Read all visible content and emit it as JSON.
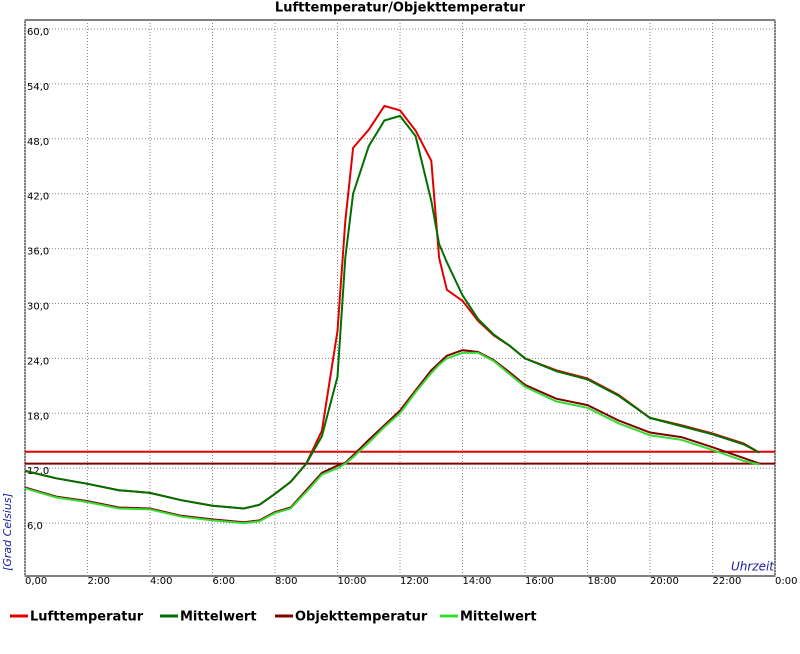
{
  "chart_data": {
    "type": "line",
    "title": "Lufttemperatur/Objekttemperatur",
    "y_label": "[Grad Celsius]",
    "x_label": "Uhrzeit",
    "x": [
      0,
      1,
      2,
      3,
      4,
      5,
      6,
      7,
      7.5,
      8,
      8.5,
      9,
      9.5,
      10,
      10.25,
      10.5,
      11,
      11.5,
      12,
      12.5,
      13,
      13.25,
      13.5,
      14,
      14.5,
      15,
      15.5,
      16,
      17,
      18,
      19,
      20,
      21,
      22,
      23,
      23.5
    ],
    "series": [
      {
        "name": "Lufttemperatur",
        "color": "#e00000",
        "values": [
          11.7,
          10.9,
          10.3,
          9.6,
          9.3,
          8.5,
          7.9,
          7.6,
          8.0,
          9.2,
          10.5,
          12.5,
          16.1,
          27,
          39,
          47,
          49,
          51.6,
          51.1,
          48.9,
          45.6,
          35,
          31.5,
          30.3,
          28.1,
          26.5,
          25.4,
          24,
          22.7,
          21.8,
          20,
          17.5,
          16.7,
          15.8,
          14.7,
          13.7
        ]
      },
      {
        "name": "Mittelwert",
        "color": "#007000",
        "values": [
          11.7,
          10.9,
          10.3,
          9.6,
          9.3,
          8.5,
          7.9,
          7.6,
          8.0,
          9.2,
          10.5,
          12.5,
          15.5,
          22,
          35,
          42,
          47.2,
          50,
          50.5,
          48.3,
          41.2,
          36.5,
          34.5,
          30.9,
          28.3,
          26.6,
          25.4,
          24,
          22.6,
          21.7,
          19.9,
          17.5,
          16.6,
          15.7,
          14.6,
          13.7
        ]
      },
      {
        "name": "Objekttemperatur",
        "color": "#800000",
        "values": [
          9.9,
          8.9,
          8.4,
          7.7,
          7.6,
          6.8,
          6.4,
          6.1,
          6.3,
          7.2,
          7.7,
          9.6,
          11.5,
          12.3,
          12.6,
          13.4,
          15.1,
          16.7,
          18.3,
          20.5,
          22.7,
          23.5,
          24.3,
          24.9,
          24.7,
          23.8,
          22.5,
          21.1,
          19.6,
          18.9,
          17.2,
          15.9,
          15.4,
          14.3,
          13.1,
          12.5
        ]
      },
      {
        "name": "Mittelwert",
        "color": "#33dd33",
        "values": [
          9.8,
          8.8,
          8.3,
          7.6,
          7.5,
          6.7,
          6.3,
          6.0,
          6.2,
          7.1,
          7.6,
          9.4,
          11.3,
          12.0,
          12.5,
          13.2,
          14.8,
          16.5,
          18.0,
          20.3,
          22.4,
          23.3,
          24.0,
          24.6,
          24.6,
          23.7,
          22.3,
          20.9,
          19.3,
          18.6,
          16.9,
          15.6,
          15.1,
          14.0,
          12.8,
          12.4
        ]
      }
    ],
    "reference_lines": [
      {
        "value": 13.8,
        "color": "#e00000"
      },
      {
        "value": 12.5,
        "color": "#800000"
      }
    ],
    "xlim": [
      0,
      24
    ],
    "xticks": [
      {
        "value": 0,
        "label": "0,00"
      },
      {
        "value": 2,
        "label": "2:00"
      },
      {
        "value": 4,
        "label": "4:00"
      },
      {
        "value": 6,
        "label": "6:00"
      },
      {
        "value": 8,
        "label": "8:00"
      },
      {
        "value": 10,
        "label": "10:00"
      },
      {
        "value": 12,
        "label": "12:00"
      },
      {
        "value": 14,
        "label": "14:00"
      },
      {
        "value": 16,
        "label": "16:00"
      },
      {
        "value": 18,
        "label": "18:00"
      },
      {
        "value": 20,
        "label": "20:00"
      },
      {
        "value": 22,
        "label": "22:00"
      },
      {
        "value": 24,
        "label": "0:00"
      }
    ],
    "ylim": [
      0,
      60
    ],
    "yticks": [
      {
        "value": 6,
        "label": "6,0"
      },
      {
        "value": 12,
        "label": "12,0"
      },
      {
        "value": 18,
        "label": "18,0"
      },
      {
        "value": 24,
        "label": "24,0"
      },
      {
        "value": 30,
        "label": "30,0"
      },
      {
        "value": 36,
        "label": "36,0"
      },
      {
        "value": 42,
        "label": "42,0"
      },
      {
        "value": 48,
        "label": "48,0"
      },
      {
        "value": 54,
        "label": "54,0"
      },
      {
        "value": 60,
        "label": "60,0"
      }
    ],
    "grid": true
  }
}
